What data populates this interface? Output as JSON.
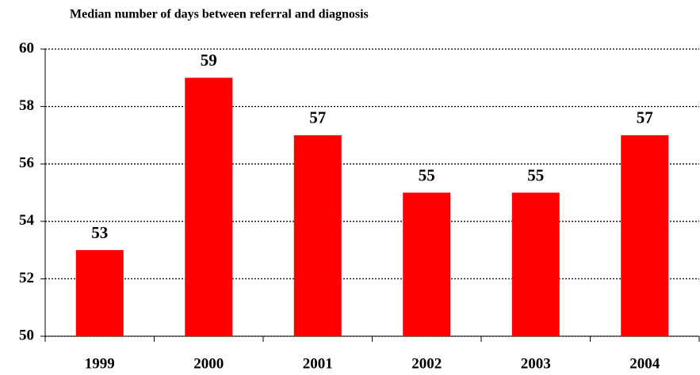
{
  "chart_data": {
    "type": "bar",
    "title": "Median number of days between referral and diagnosis",
    "categories": [
      "1999",
      "2000",
      "2001",
      "2002",
      "2003",
      "2004"
    ],
    "values": [
      53,
      59,
      57,
      55,
      55,
      57
    ],
    "color": "#ff0000",
    "ylim": [
      50,
      60
    ],
    "yticks": [
      50,
      52,
      54,
      56,
      58,
      60
    ],
    "grid": true
  }
}
